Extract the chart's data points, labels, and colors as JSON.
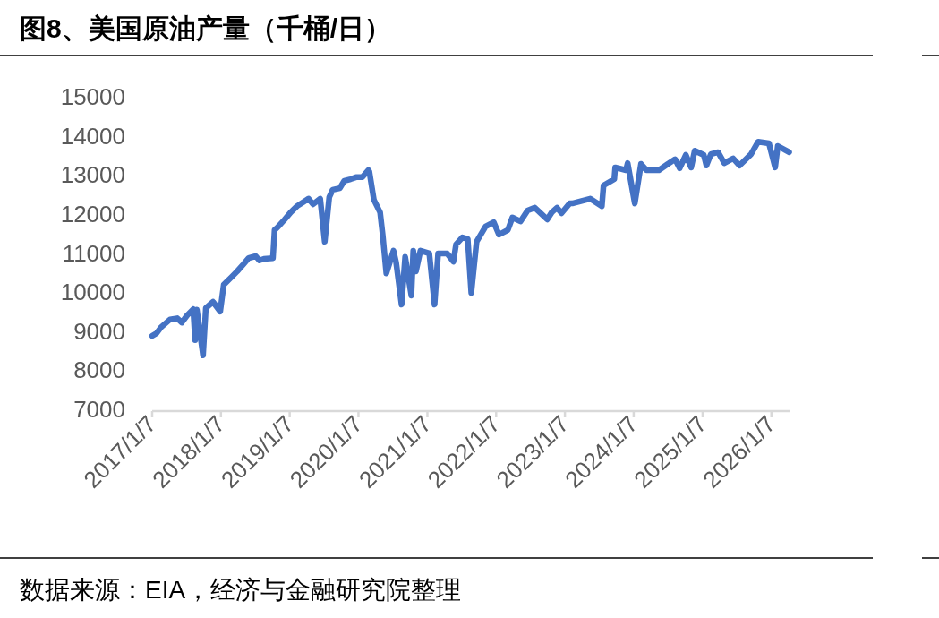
{
  "chart_data": {
    "type": "line",
    "title": "图8、美国原油产量（千桶/日）",
    "annotations": [
      "数据来源：EIA，经济与金融研究院整理"
    ],
    "x": [
      "2017-01-07",
      "2017-01-31",
      "2017-02-23",
      "2017-04-12",
      "2017-05-20",
      "2017-06-13",
      "2017-07-11",
      "2017-08-13",
      "2017-08-23",
      "2017-09-01",
      "2017-10-04",
      "2017-10-19",
      "2017-11-26",
      "2018-01-03",
      "2018-01-22",
      "2018-03-01",
      "2018-04-03",
      "2018-05-06",
      "2018-06-03",
      "2018-07-11",
      "2018-07-30",
      "2018-08-23",
      "2018-10-10",
      "2018-10-19",
      "2018-11-02",
      "2018-12-10",
      "2019-01-12",
      "2019-02-15",
      "2019-03-25",
      "2019-04-17",
      "2019-05-11",
      "2019-06-18",
      "2019-07-12",
      "2019-08-05",
      "2019-08-23",
      "2019-09-30",
      "2019-10-24",
      "2019-11-26",
      "2019-12-25",
      "2020-01-27",
      "2020-02-29",
      "2020-03-05",
      "2020-03-29",
      "2020-05-01",
      "2020-05-15",
      "2020-06-03",
      "2020-07-11",
      "2020-07-25",
      "2020-08-23",
      "2020-09-11",
      "2020-10-14",
      "2020-10-24",
      "2020-11-07",
      "2020-12-01",
      "2021-01-17",
      "2021-02-14",
      "2021-03-05",
      "2021-04-22",
      "2021-05-25",
      "2021-06-08",
      "2021-07-12",
      "2021-08-09",
      "2021-08-28",
      "2021-09-25",
      "2021-11-12",
      "2021-12-25",
      "2022-01-22",
      "2022-03-10",
      "2022-04-03",
      "2022-05-16",
      "2022-06-23",
      "2022-07-31",
      "2022-10-05",
      "2022-10-29",
      "2022-11-26",
      "2022-12-20",
      "2023-02-01",
      "2023-02-15",
      "2023-05-21",
      "2023-07-22",
      "2023-07-31",
      "2023-09-26",
      "2023-10-01",
      "2023-11-27",
      "2023-12-06",
      "2024-01-13",
      "2024-02-15",
      "2024-03-15",
      "2024-05-20",
      "2024-07-07",
      "2024-08-14",
      "2024-09-07",
      "2024-10-10",
      "2024-11-07",
      "2024-11-26",
      "2025-01-13",
      "2025-01-27",
      "2025-02-20",
      "2025-03-30",
      "2025-05-02",
      "2025-06-18",
      "2025-07-22",
      "2025-09-21",
      "2025-10-29",
      "2025-12-25",
      "2026-01-27",
      "2026-02-10",
      "2026-04-11"
    ],
    "series": [
      {
        "color": "#4472c4",
        "values": [
          8880,
          8950,
          9100,
          9300,
          9330,
          9220,
          9400,
          9560,
          8770,
          9550,
          8380,
          9590,
          9750,
          9500,
          10190,
          10370,
          10530,
          10710,
          10870,
          10920,
          10810,
          10850,
          10870,
          11590,
          11650,
          11850,
          12040,
          12200,
          12320,
          12390,
          12250,
          12390,
          11290,
          12430,
          12620,
          12660,
          12850,
          12890,
          12940,
          12940,
          13120,
          13080,
          12360,
          12040,
          11450,
          10480,
          11060,
          10760,
          9680,
          10900,
          9910,
          11060,
          10530,
          11060,
          10990,
          9680,
          10990,
          10990,
          10780,
          11220,
          11400,
          11360,
          9980,
          11290,
          11680,
          11790,
          11470,
          11590,
          11910,
          11810,
          12090,
          12160,
          11860,
          12040,
          12160,
          12020,
          12270,
          12270,
          12390,
          12200,
          12730,
          12890,
          13190,
          13120,
          13300,
          12270,
          13280,
          13120,
          13120,
          13280,
          13400,
          13170,
          13510,
          13190,
          13620,
          13510,
          13240,
          13530,
          13580,
          13300,
          13420,
          13240,
          13530,
          13850,
          13810,
          13190,
          13740,
          13580
        ]
      }
    ],
    "xlim": [
      "2017-01-07",
      "2026-04-18"
    ],
    "xticks": [
      {
        "value": "2017-01-07",
        "label": "2017/1/7"
      },
      {
        "value": "2018-01-07",
        "label": "2018/1/7"
      },
      {
        "value": "2019-01-07",
        "label": "2019/1/7"
      },
      {
        "value": "2020-01-07",
        "label": "2020/1/7"
      },
      {
        "value": "2021-01-07",
        "label": "2021/1/7"
      },
      {
        "value": "2022-01-07",
        "label": "2022/1/7"
      },
      {
        "value": "2023-01-07",
        "label": "2023/1/7"
      },
      {
        "value": "2024-01-07",
        "label": "2024/1/7"
      },
      {
        "value": "2025-01-07",
        "label": "2025/1/7"
      },
      {
        "value": "2026-01-07",
        "label": "2026/1/7"
      }
    ],
    "ylim": [
      7000,
      15000
    ],
    "yticks": [
      7000,
      8000,
      9000,
      10000,
      11000,
      12000,
      13000,
      14000,
      15000
    ],
    "grid": false
  }
}
